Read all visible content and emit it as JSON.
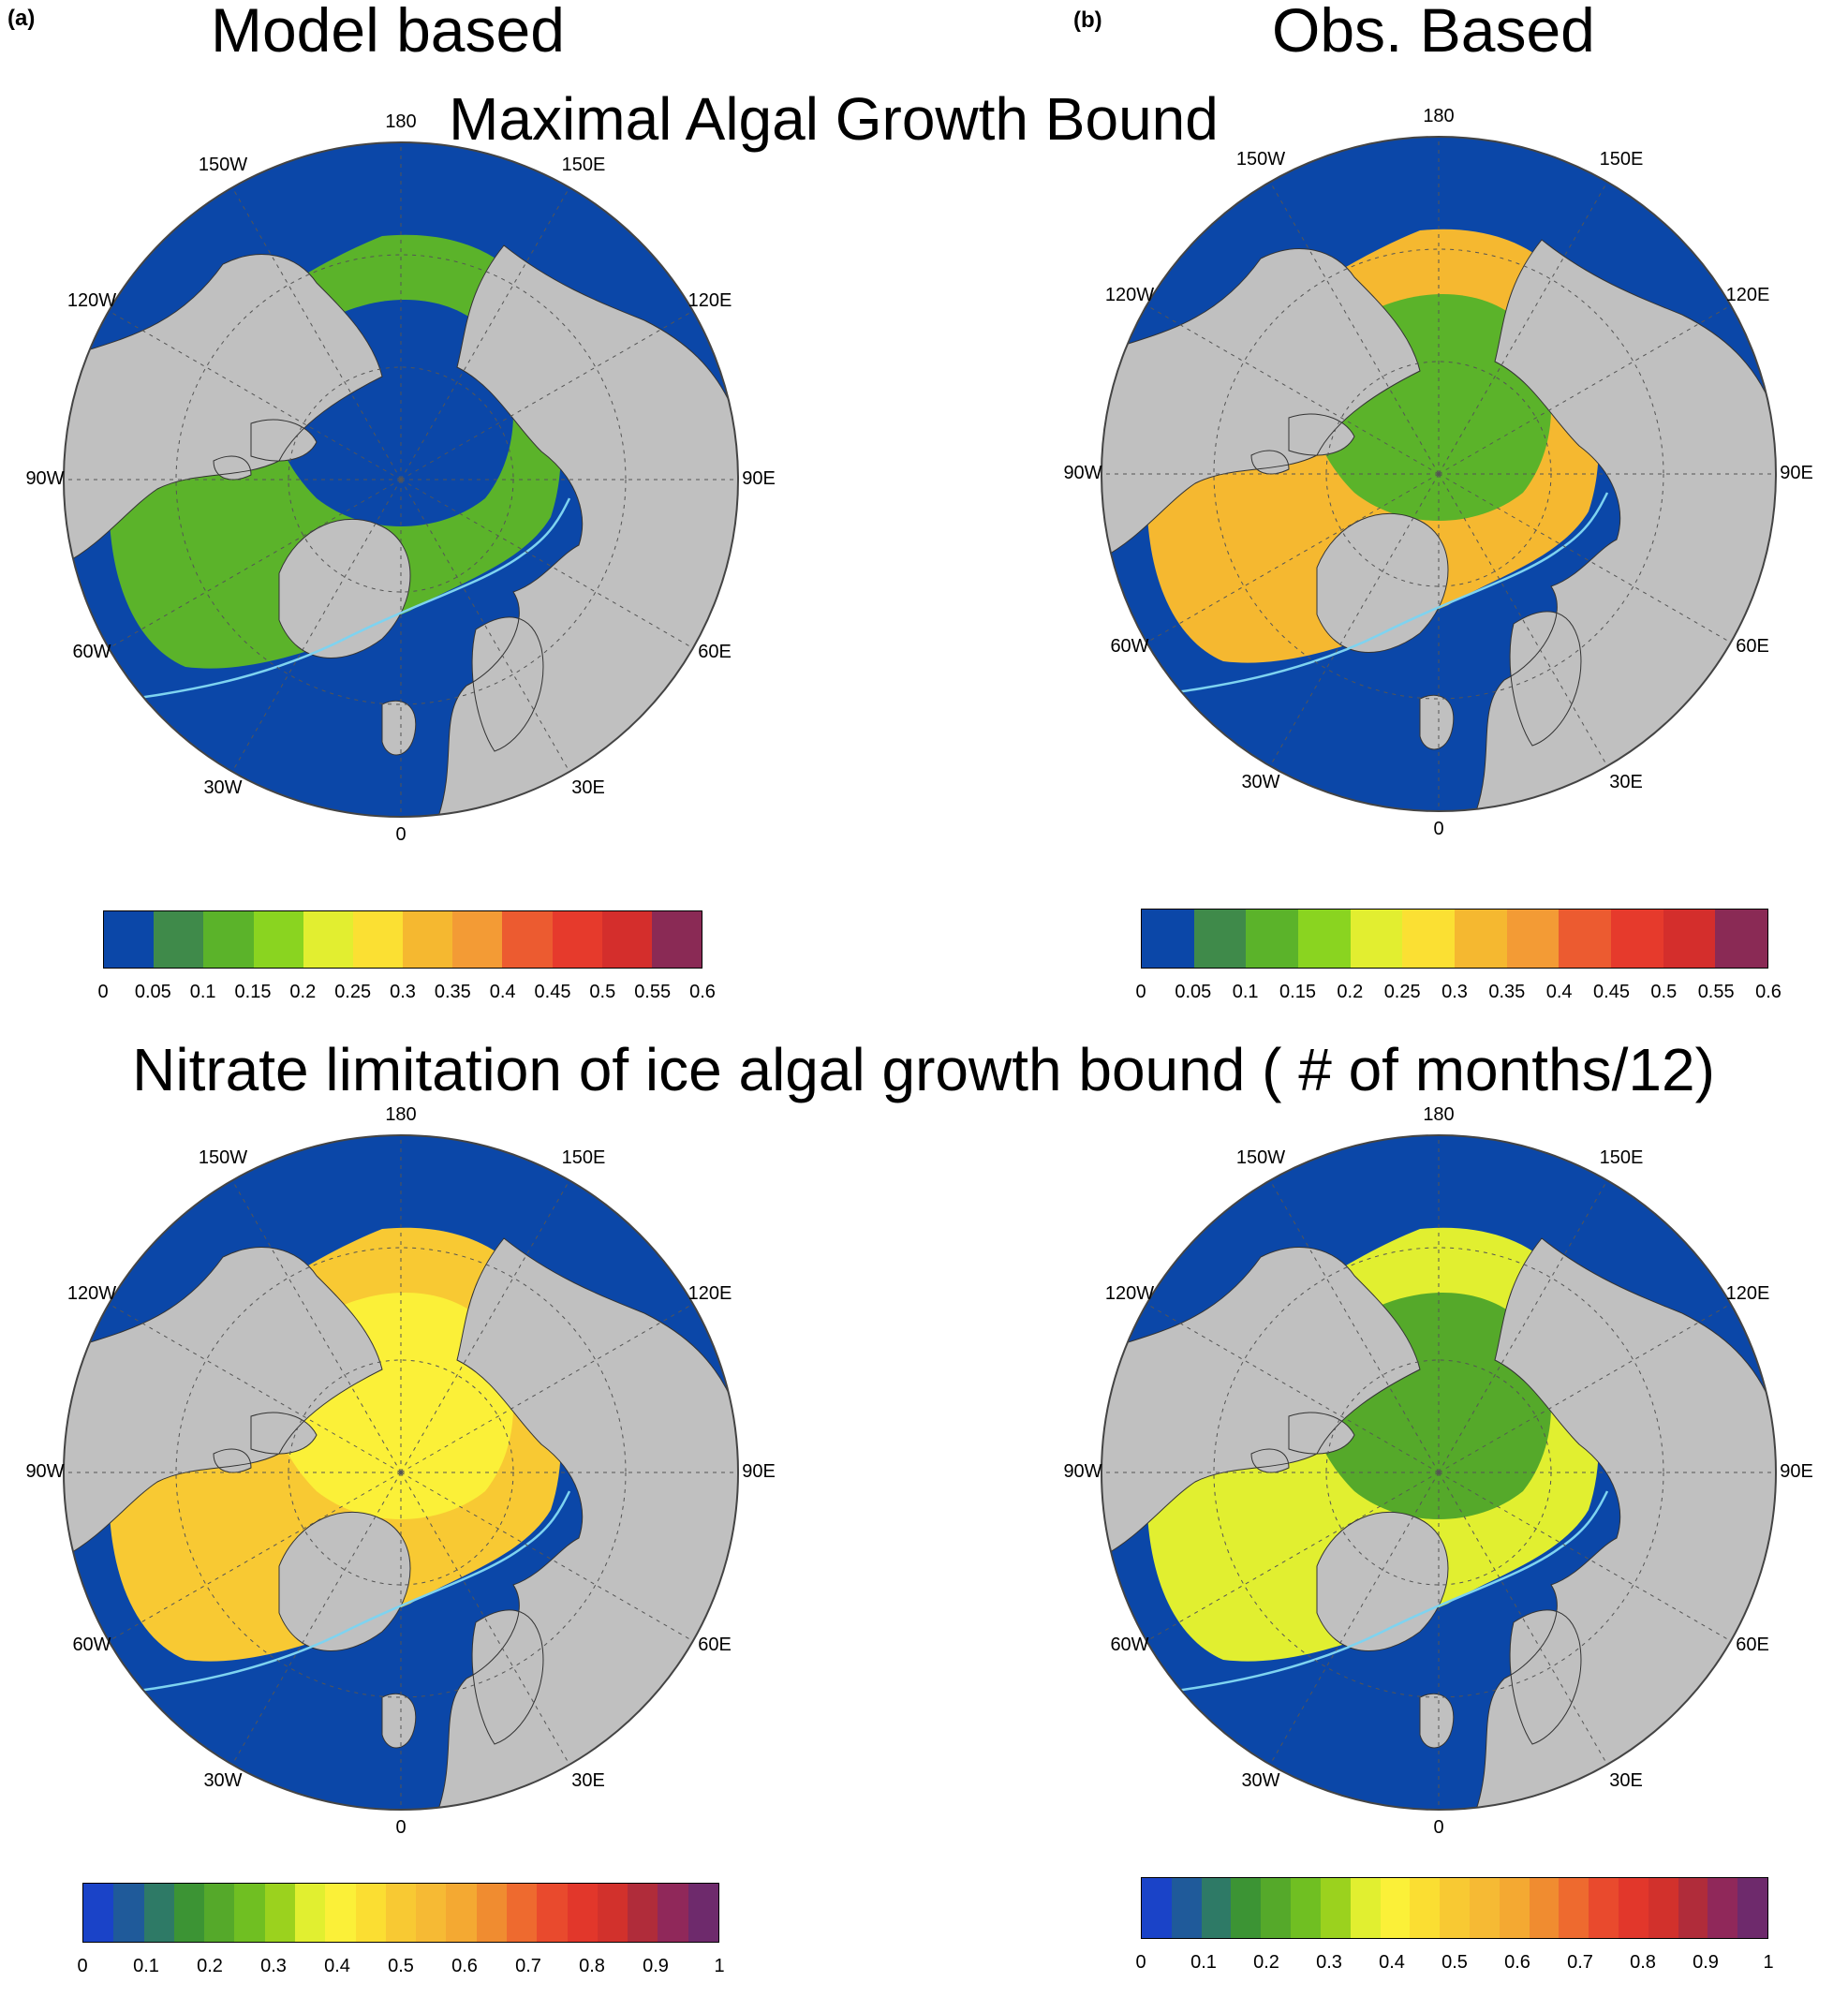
{
  "panels": {
    "a_tag": "(a)",
    "b_tag": "(b)",
    "a_title": "Model based",
    "b_title": "Obs. Based"
  },
  "rows": {
    "top_title": "Maximal Algal Growth Bound",
    "bottom_title": "Nitrate limitation of ice algal growth bound ( # of months/12)"
  },
  "map_labels": {
    "lon_180": "180",
    "lon_150w": "150W",
    "lon_150e": "150E",
    "lon_120w": "120W",
    "lon_120e": "120E",
    "lon_90w": "90W",
    "lon_90e": "90E",
    "lon_60w": "60W",
    "lon_60e": "60E",
    "lon_30w": "30W",
    "lon_30e": "30E",
    "lon_0": "0"
  },
  "colors": {
    "ocean": "#0b47a8",
    "land": "#c0c0c0",
    "coast": "#333333",
    "ice_edge": "#7ed3f0"
  },
  "colorbar_top": {
    "ticks": [
      "0",
      "0.05",
      "0.1",
      "0.15",
      "0.2",
      "0.25",
      "0.3",
      "0.35",
      "0.4",
      "0.45",
      "0.5",
      "0.55",
      "0.6"
    ],
    "colors": [
      "#0b47a8",
      "#3f8a4a",
      "#5bb32a",
      "#8ad420",
      "#e2ee30",
      "#fbe033",
      "#f5b830",
      "#f39b35",
      "#ec5b30",
      "#e63a2c",
      "#d42e2c",
      "#8a2a55"
    ]
  },
  "colorbar_bottom": {
    "ticks": [
      "0",
      "0.1",
      "0.2",
      "0.3",
      "0.4",
      "0.5",
      "0.6",
      "0.7",
      "0.8",
      "0.9",
      "1"
    ],
    "colors": [
      "#1a43c8",
      "#1f5a9a",
      "#2e7a66",
      "#3c9434",
      "#55a92a",
      "#70bf22",
      "#9bd21e",
      "#e1ef30",
      "#fbf038",
      "#fbde32",
      "#f8c933",
      "#f6ba34",
      "#f4a932",
      "#f08c30",
      "#ee6a2f",
      "#e94a2d",
      "#e2372b",
      "#d2312c",
      "#b02c3a",
      "#90285a",
      "#6e2a6c"
    ]
  }
}
